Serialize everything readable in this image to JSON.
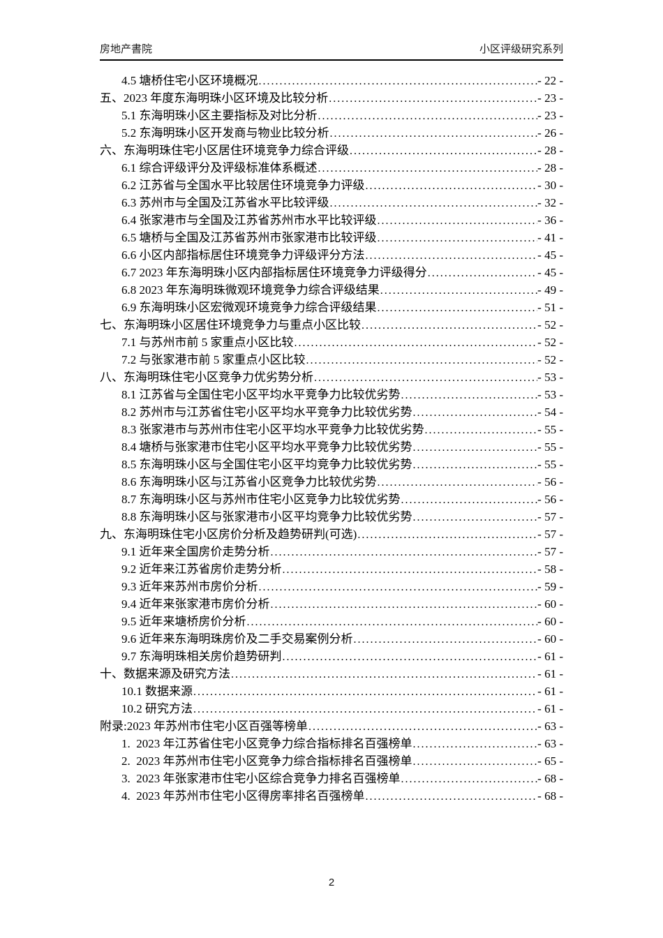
{
  "header": {
    "left_title": "房地产書院",
    "right_title": "小区评级研究系列"
  },
  "toc": {
    "entries": [
      {
        "level": 2,
        "label": "4.5 塘桥住宅小区环境概况",
        "page": "- 22 -"
      },
      {
        "level": 1,
        "label": "五、2023 年度东海明珠小区环境及比较分析",
        "page": "- 23 -"
      },
      {
        "level": 2,
        "label": "5.1 东海明珠小区主要指标及对比分析",
        "page": "- 23 -"
      },
      {
        "level": 2,
        "label": "5.2 东海明珠小区开发商与物业比较分析",
        "page": "- 26 -"
      },
      {
        "level": 1,
        "label": "六、东海明珠住宅小区居住环境竞争力综合评级",
        "page": "- 28 -"
      },
      {
        "level": 2,
        "label": "6.1 综合评级评分及评级标准体系概述",
        "page": "- 28 -"
      },
      {
        "level": 2,
        "label": "6.2 江苏省与全国水平比较居住环境竞争力评级",
        "page": "- 30 -"
      },
      {
        "level": 2,
        "label": "6.3 苏州市与全国及江苏省水平比较评级",
        "page": "- 32 -"
      },
      {
        "level": 2,
        "label": "6.4 张家港市与全国及江苏省苏州市水平比较评级",
        "page": "- 36 -"
      },
      {
        "level": 2,
        "label": "6.5 塘桥与全国及江苏省苏州市张家港市比较评级",
        "page": "- 41 -"
      },
      {
        "level": 2,
        "label": "6.6 小区内部指标居住环境竞争力评级评分方法",
        "page": "- 45 -"
      },
      {
        "level": 2,
        "label": "6.7 2023 年东海明珠小区内部指标居住环境竞争力评级得分",
        "page": "- 45 -"
      },
      {
        "level": 2,
        "label": "6.8 2023 年东海明珠微观环境竞争力综合评级结果",
        "page": "- 49 -"
      },
      {
        "level": 2,
        "label": "6.9 东海明珠小区宏微观环境竞争力综合评级结果",
        "page": "- 51 -"
      },
      {
        "level": 1,
        "label": "七、东海明珠小区居住环境竞争力与重点小区比较",
        "page": "- 52 -"
      },
      {
        "level": 2,
        "label": "7.1 与苏州市前 5 家重点小区比较",
        "page": "- 52 -"
      },
      {
        "level": 2,
        "label": "7.2 与张家港市前 5 家重点小区比较",
        "page": "- 52 -"
      },
      {
        "level": 1,
        "label": "八、东海明珠住宅小区竞争力优劣势分析",
        "page": "- 53 -"
      },
      {
        "level": 2,
        "label": "8.1 江苏省与全国住宅小区平均水平竞争力比较优劣势",
        "page": "- 53 -"
      },
      {
        "level": 2,
        "label": "8.2 苏州市与江苏省住宅小区平均水平竞争力比较优劣势",
        "page": "- 54 -"
      },
      {
        "level": 2,
        "label": "8.3 张家港市与苏州市住宅小区平均水平竞争力比较优劣势",
        "page": "- 55 -"
      },
      {
        "level": 2,
        "label": "8.4 塘桥与张家港市住宅小区平均水平竞争力比较优劣势",
        "page": "- 55 -"
      },
      {
        "level": 2,
        "label": "8.5 东海明珠小区与全国住宅小区平均竞争力比较优劣势",
        "page": "- 55 -"
      },
      {
        "level": 2,
        "label": "8.6 东海明珠小区与江苏省小区竞争力比较优劣势",
        "page": "- 56 -"
      },
      {
        "level": 2,
        "label": "8.7 东海明珠小区与苏州市住宅小区竞争力比较优劣势",
        "page": "- 56 -"
      },
      {
        "level": 2,
        "label": "8.8 东海明珠小区与张家港市小区平均竞争力比较优劣势",
        "page": "- 57 -"
      },
      {
        "level": 1,
        "label": "九、东海明珠住宅小区房价分析及趋势研判(可选)",
        "page": "- 57 -"
      },
      {
        "level": 2,
        "label": "9.1 近年来全国房价走势分析",
        "page": "- 57 -"
      },
      {
        "level": 2,
        "label": "9.2 近年来江苏省房价走势分析",
        "page": "- 58 -"
      },
      {
        "level": 2,
        "label": "9.3 近年来苏州市房价分析",
        "page": "- 59 -"
      },
      {
        "level": 2,
        "label": "9.4 近年来张家港市房价分析",
        "page": "- 60 -"
      },
      {
        "level": 2,
        "label": "9.5 近年来塘桥房价分析",
        "page": "- 60 -"
      },
      {
        "level": 2,
        "label": "9.6 近年来东海明珠房价及二手交易案例分析",
        "page": "- 60 -"
      },
      {
        "level": 2,
        "label": "9.7 东海明珠相关房价趋势研判",
        "page": "- 61 -"
      },
      {
        "level": 1,
        "label": "十、数据来源及研究方法",
        "page": "- 61 -"
      },
      {
        "level": 2,
        "label": "10.1 数据来源",
        "page": "- 61 -"
      },
      {
        "level": 2,
        "label": "10.2 研究方法",
        "page": "- 61 -"
      },
      {
        "level": 1,
        "label": "附录:2023 年苏州市住宅小区百强等榜单",
        "page": "- 63 -"
      },
      {
        "level": 2,
        "label": "1.  2023 年江苏省住宅小区竞争力综合指标排名百强榜单",
        "page": "- 63 -"
      },
      {
        "level": 2,
        "label": "2.  2023 年苏州市住宅小区竞争力综合指标排名百强榜单",
        "page": "- 65 -"
      },
      {
        "level": 2,
        "label": "3.  2023 年张家港市住宅小区综合竞争力排名百强榜单",
        "page": "- 68 -"
      },
      {
        "level": 2,
        "label": "4.  2023 年苏州市住宅小区得房率排名百强榜单",
        "page": "- 68 -"
      }
    ]
  },
  "footer": {
    "page_number": "2"
  }
}
